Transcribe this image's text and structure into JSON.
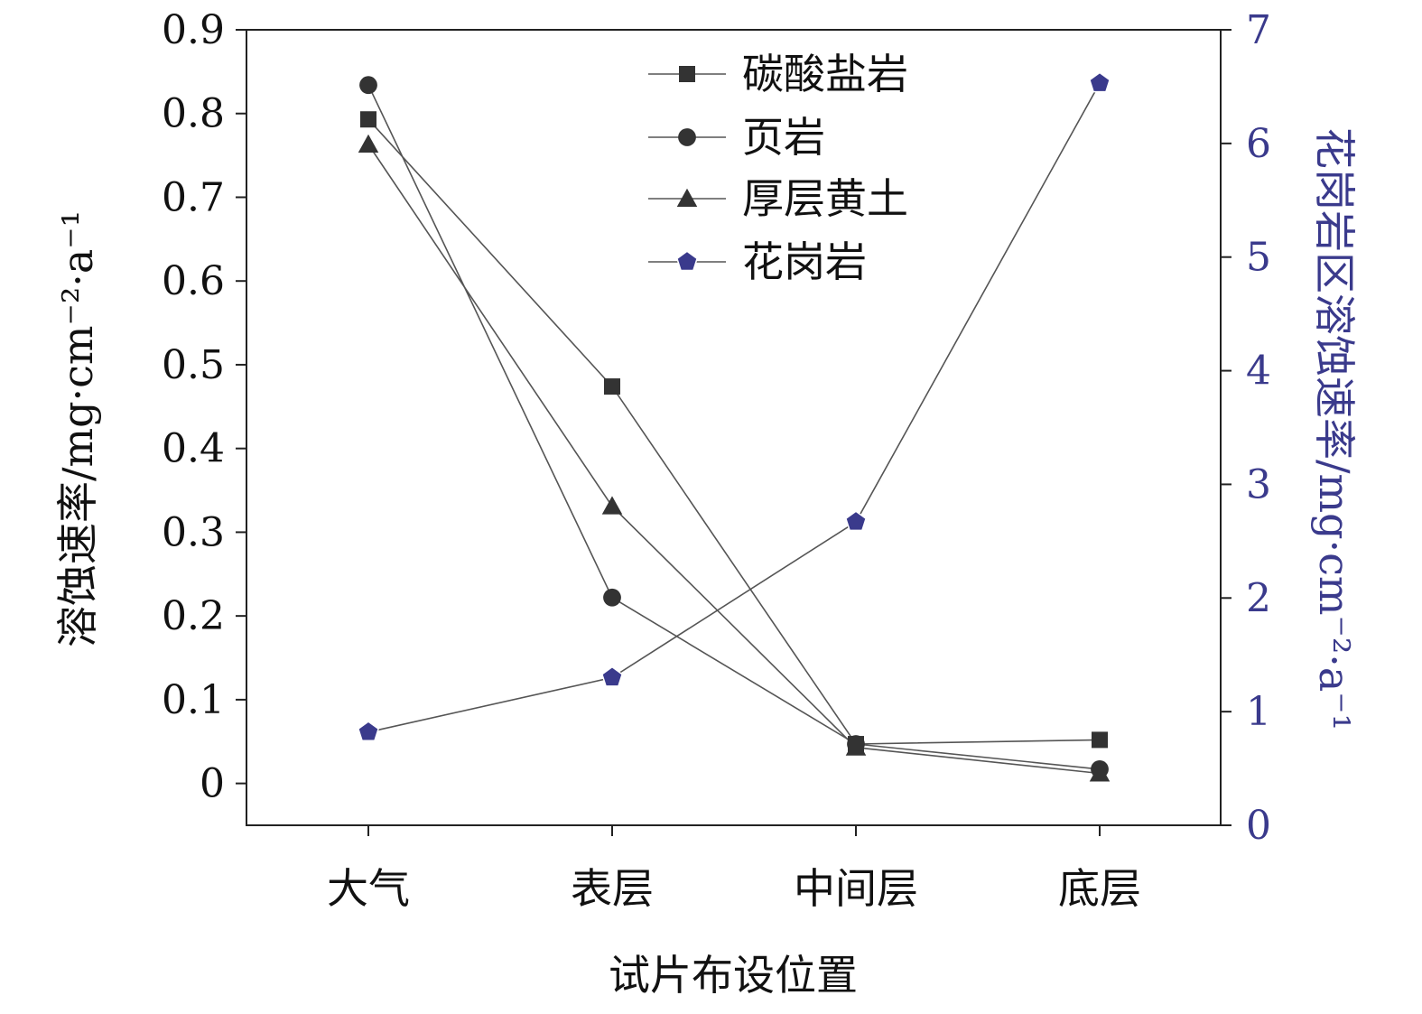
{
  "colors": {
    "axis": "#222222",
    "series_dark": "#333333",
    "granite": "#3a3a8c",
    "right_axis": "#3a3a8c",
    "line": "#555555"
  },
  "chart_data": {
    "type": "line",
    "categories": [
      "大气",
      "表层",
      "中间层",
      "底层"
    ],
    "xlabel": "试片布设位置",
    "ylabel": "溶蚀速率/mg·cm⁻²·a⁻¹",
    "ylabel_right": "花岗岩区溶蚀速率/mg·cm⁻²·a⁻¹",
    "ylim": [
      -0.05,
      0.9
    ],
    "ylim_right": [
      0,
      7
    ],
    "yticks": [
      "0",
      "0.1",
      "0.2",
      "0.3",
      "0.4",
      "0.5",
      "0.6",
      "0.7",
      "0.8",
      "0.9"
    ],
    "yticks_right": [
      "0",
      "1",
      "2",
      "3",
      "4",
      "5",
      "6",
      "7"
    ],
    "grid": false,
    "legend_position": "top-center",
    "series": [
      {
        "name": "碳酸盐岩",
        "marker": "square",
        "axis": "left",
        "values": [
          0.793,
          0.474,
          0.047,
          0.052
        ]
      },
      {
        "name": "页岩",
        "marker": "circle",
        "axis": "left",
        "values": [
          0.834,
          0.222,
          0.047,
          0.017
        ]
      },
      {
        "name": "厚层黄土",
        "marker": "triangle",
        "axis": "left",
        "values": [
          0.763,
          0.331,
          0.043,
          0.012
        ]
      },
      {
        "name": "花岗岩",
        "marker": "pentagon",
        "axis": "right",
        "values": [
          0.82,
          1.3,
          2.67,
          6.53
        ]
      }
    ]
  }
}
